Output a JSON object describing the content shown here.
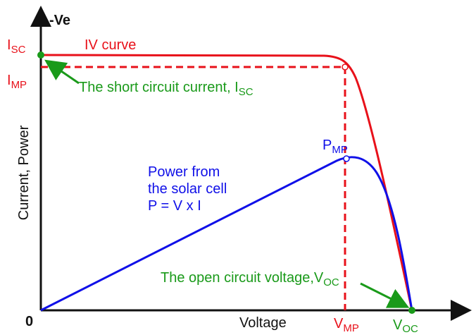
{
  "y_axis": {
    "direction": "-Ve",
    "label": "Current, Power"
  },
  "x_axis": {
    "origin": "0",
    "label": "Voltage"
  },
  "isc": {
    "main": "I",
    "sub": "SC"
  },
  "imp": {
    "main": "I",
    "sub": "MP"
  },
  "iv_curve": "IV curve",
  "short_circuit_note": {
    "main": "The short circuit current, I",
    "sub": "SC"
  },
  "pmp": {
    "main": "P",
    "sub": "MP"
  },
  "power_note": [
    "Power from",
    "the solar cell",
    "P = V x I"
  ],
  "open_circuit_note": {
    "main": "The open circuit voltage,V",
    "sub": "OC"
  },
  "vmp": {
    "main": "V",
    "sub": "MP"
  },
  "voc": {
    "main": "V",
    "sub": "OC"
  }
}
